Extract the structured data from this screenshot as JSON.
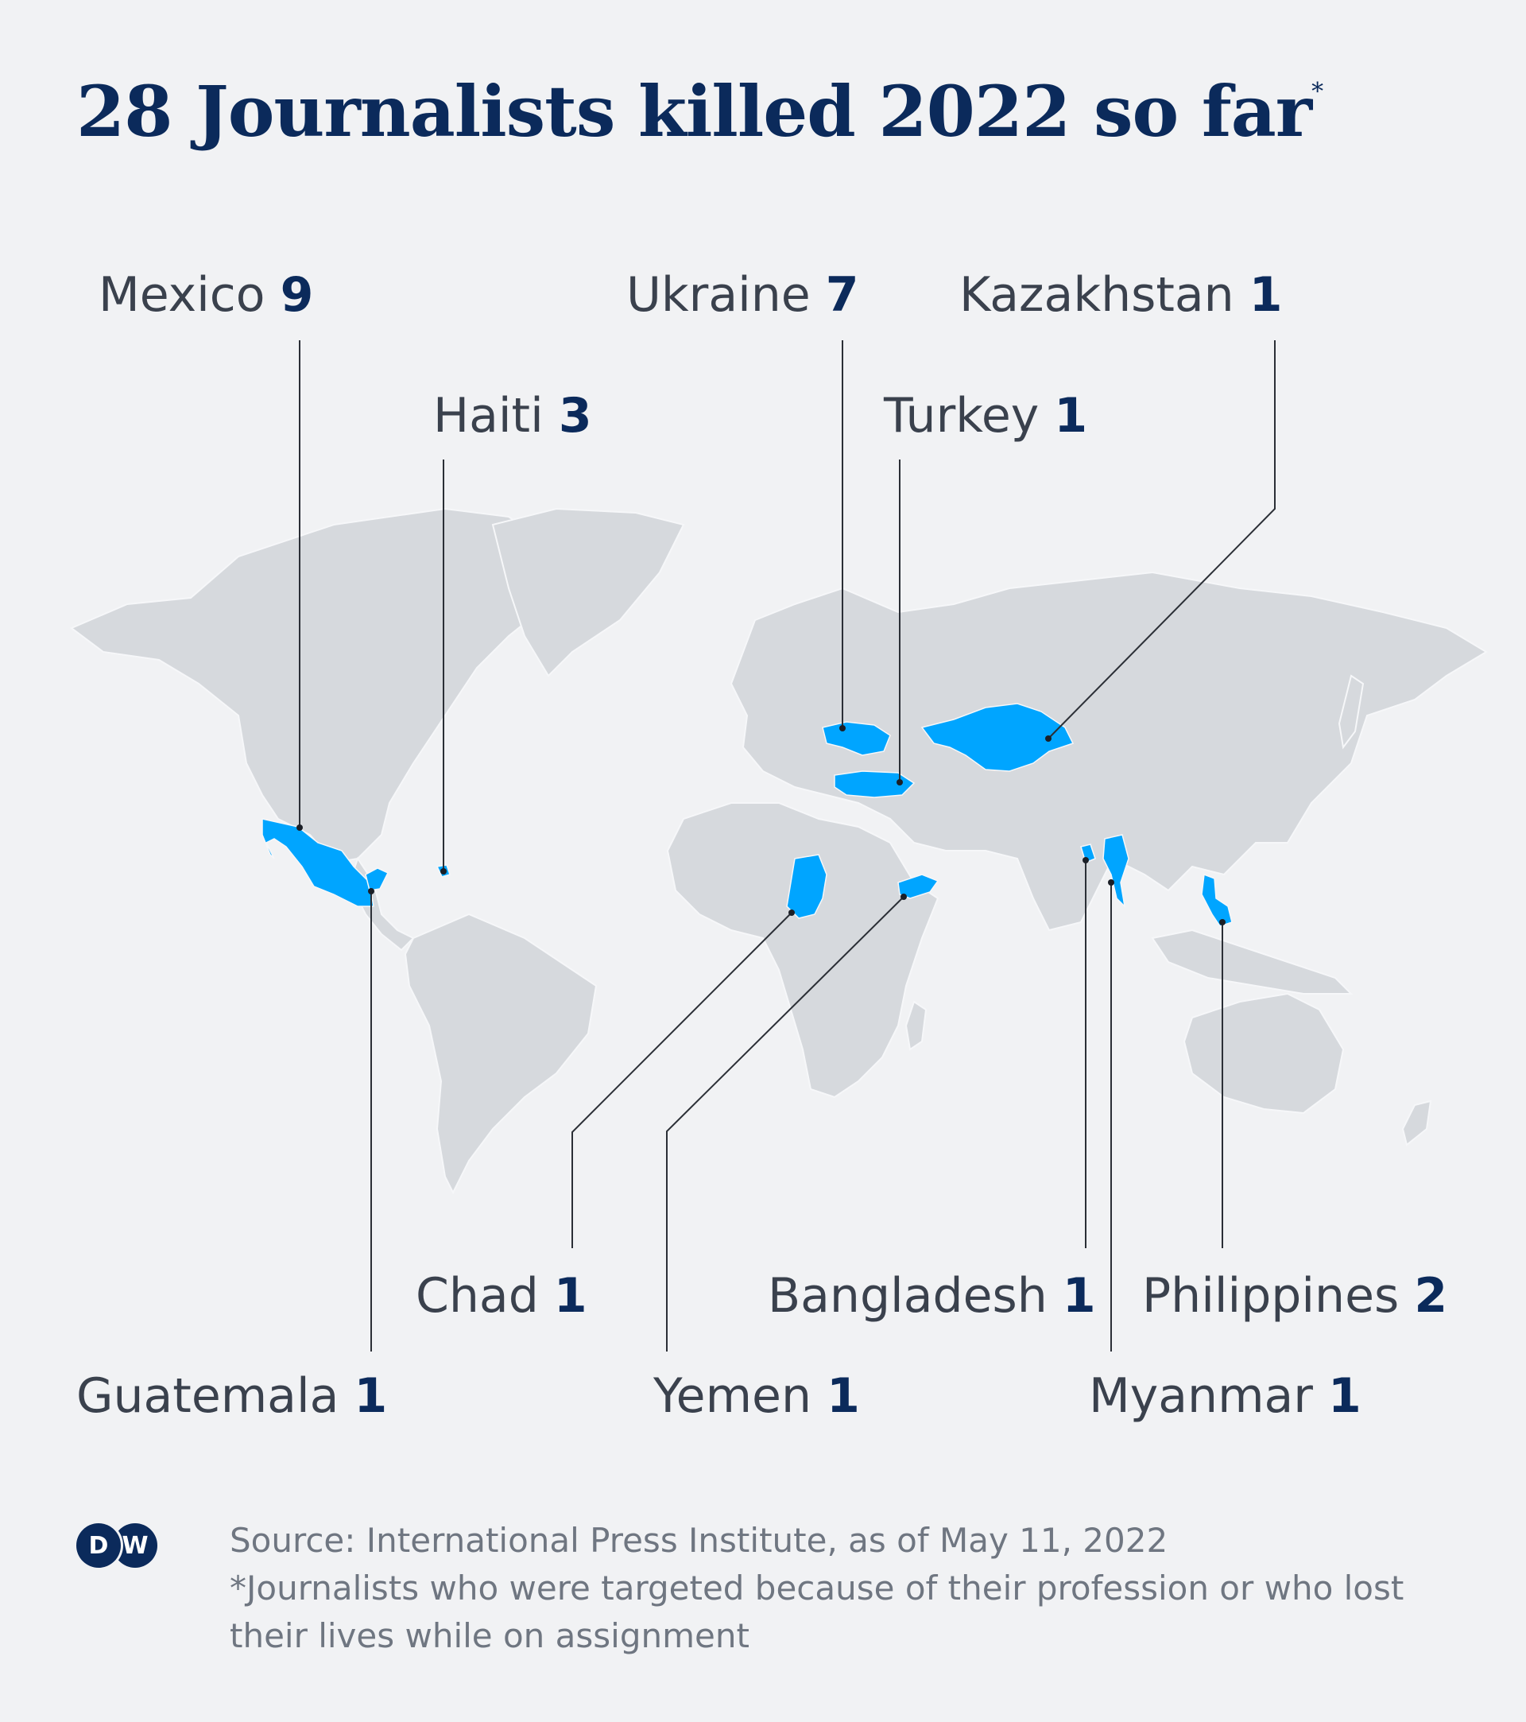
{
  "title": {
    "text": "28 Journalists killed 2022 so far",
    "marker": "*"
  },
  "countries": [
    {
      "name": "Mexico",
      "count": "9"
    },
    {
      "name": "Haiti",
      "count": "3"
    },
    {
      "name": "Ukraine",
      "count": "7"
    },
    {
      "name": "Kazakhstan",
      "count": "1"
    },
    {
      "name": "Turkey",
      "count": "1"
    },
    {
      "name": "Chad",
      "count": "1"
    },
    {
      "name": "Bangladesh",
      "count": "1"
    },
    {
      "name": "Philippines",
      "count": "2"
    },
    {
      "name": "Guatemala",
      "count": "1"
    },
    {
      "name": "Yemen",
      "count": "1"
    },
    {
      "name": "Myanmar",
      "count": "1"
    }
  ],
  "footer": {
    "source": "Source: International Press Institute, as of May 11, 2022",
    "note": "*Journalists who were targeted because of their profession or who lost their lives while on assignment",
    "logo": {
      "left": "D",
      "right": "W"
    }
  },
  "colors": {
    "highlight": "#00a5ff",
    "land": "#d6d9dd",
    "title": "#0b2a5b",
    "background": "#f1f2f4"
  }
}
